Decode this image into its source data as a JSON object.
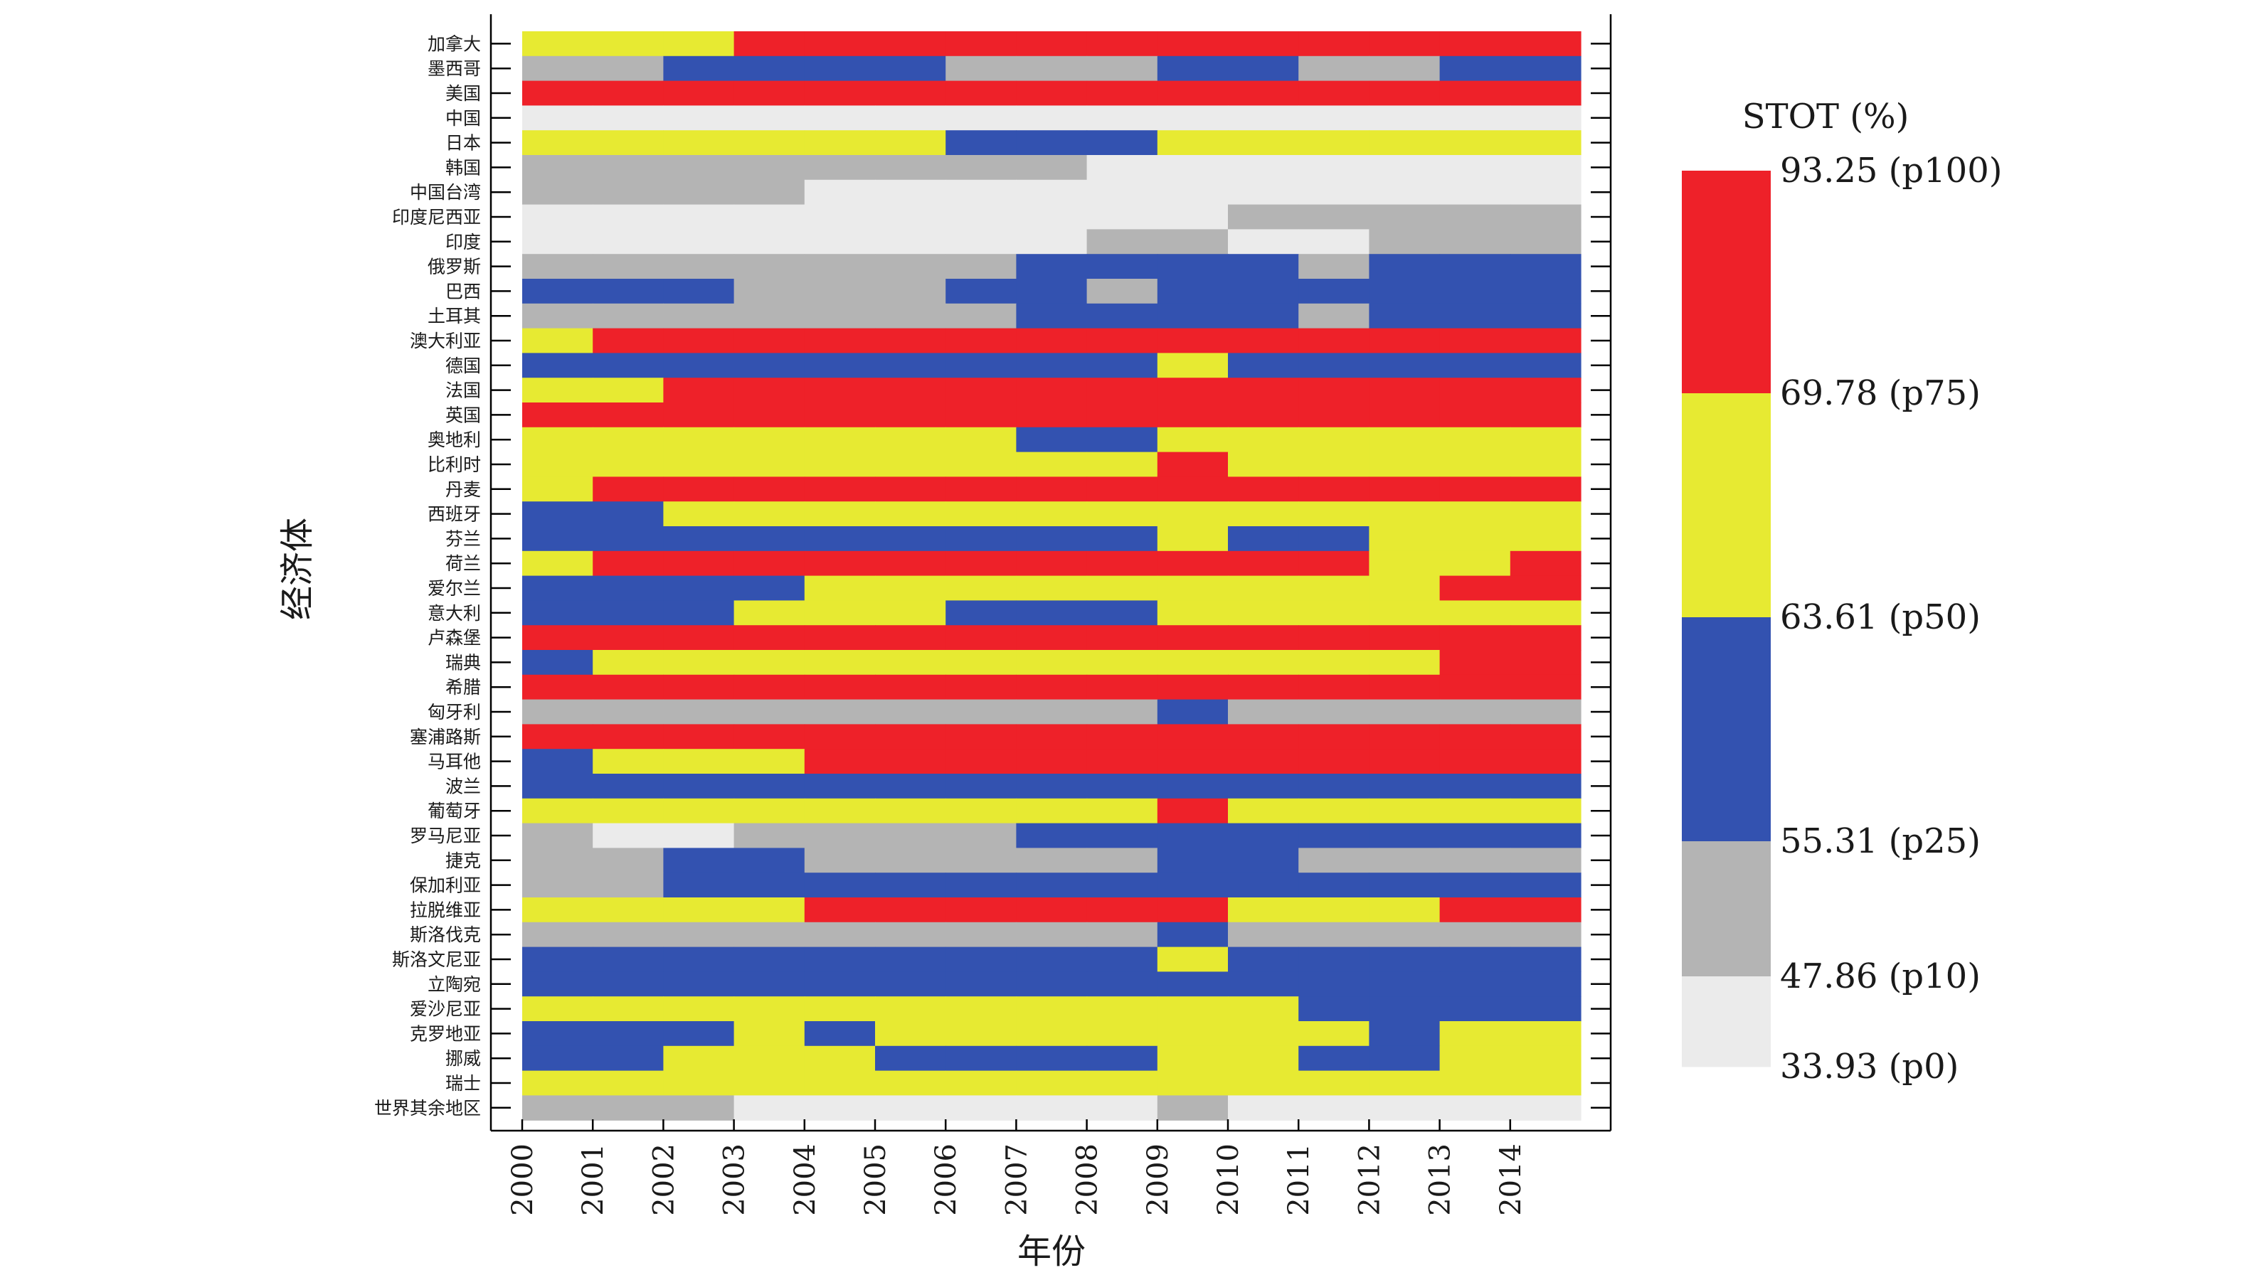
{
  "chart_data": {
    "type": "heatmap",
    "xlabel": "年份",
    "ylabel": "经济体",
    "years": [
      "2000",
      "2001",
      "2002",
      "2003",
      "2004",
      "2005",
      "2006",
      "2007",
      "2008",
      "2009",
      "2010",
      "2011",
      "2012",
      "2013",
      "2014"
    ],
    "class_codes": {
      "0": "p0–p10",
      "1": "p10–p25",
      "2": "p25–p50",
      "3": "p50–p75",
      "4": "p75–p100"
    },
    "class_colors": [
      "#ebebeb",
      "#b4b4b4",
      "#3352b0",
      "#e7ea32",
      "#ee2129"
    ],
    "economies": [
      {
        "name": "加拿大",
        "classes": [
          3,
          3,
          3,
          4,
          4,
          4,
          4,
          4,
          4,
          4,
          4,
          4,
          4,
          4,
          4
        ]
      },
      {
        "name": "墨西哥",
        "classes": [
          1,
          1,
          2,
          2,
          2,
          2,
          1,
          1,
          1,
          2,
          2,
          1,
          1,
          2,
          2
        ]
      },
      {
        "name": "美国",
        "classes": [
          4,
          4,
          4,
          4,
          4,
          4,
          4,
          4,
          4,
          4,
          4,
          4,
          4,
          4,
          4
        ]
      },
      {
        "name": "中国",
        "classes": [
          0,
          0,
          0,
          0,
          0,
          0,
          0,
          0,
          0,
          0,
          0,
          0,
          0,
          0,
          0
        ]
      },
      {
        "name": "日本",
        "classes": [
          3,
          3,
          3,
          3,
          3,
          3,
          2,
          2,
          2,
          3,
          3,
          3,
          3,
          3,
          3
        ]
      },
      {
        "name": "韩国",
        "classes": [
          1,
          1,
          1,
          1,
          1,
          1,
          1,
          1,
          0,
          0,
          0,
          0,
          0,
          0,
          0
        ]
      },
      {
        "name": "中国台湾",
        "classes": [
          1,
          1,
          1,
          1,
          0,
          0,
          0,
          0,
          0,
          0,
          0,
          0,
          0,
          0,
          0
        ]
      },
      {
        "name": "印度尼西亚",
        "classes": [
          0,
          0,
          0,
          0,
          0,
          0,
          0,
          0,
          0,
          0,
          1,
          1,
          1,
          1,
          1
        ]
      },
      {
        "name": "印度",
        "classes": [
          0,
          0,
          0,
          0,
          0,
          0,
          0,
          0,
          1,
          1,
          0,
          0,
          1,
          1,
          1
        ]
      },
      {
        "name": "俄罗斯",
        "classes": [
          1,
          1,
          1,
          1,
          1,
          1,
          1,
          2,
          2,
          2,
          2,
          1,
          2,
          2,
          2
        ]
      },
      {
        "name": "巴西",
        "classes": [
          2,
          2,
          2,
          1,
          1,
          1,
          2,
          2,
          1,
          2,
          2,
          2,
          2,
          2,
          2
        ]
      },
      {
        "name": "土耳其",
        "classes": [
          1,
          1,
          1,
          1,
          1,
          1,
          1,
          2,
          2,
          2,
          2,
          1,
          2,
          2,
          2
        ]
      },
      {
        "name": "澳大利亚",
        "classes": [
          3,
          4,
          4,
          4,
          4,
          4,
          4,
          4,
          4,
          4,
          4,
          4,
          4,
          4,
          4
        ]
      },
      {
        "name": "德国",
        "classes": [
          2,
          2,
          2,
          2,
          2,
          2,
          2,
          2,
          2,
          3,
          2,
          2,
          2,
          2,
          2
        ]
      },
      {
        "name": "法国",
        "classes": [
          3,
          3,
          4,
          4,
          4,
          4,
          4,
          4,
          4,
          4,
          4,
          4,
          4,
          4,
          4
        ]
      },
      {
        "name": "英国",
        "classes": [
          4,
          4,
          4,
          4,
          4,
          4,
          4,
          4,
          4,
          4,
          4,
          4,
          4,
          4,
          4
        ]
      },
      {
        "name": "奥地利",
        "classes": [
          3,
          3,
          3,
          3,
          3,
          3,
          3,
          2,
          2,
          3,
          3,
          3,
          3,
          3,
          3
        ]
      },
      {
        "name": "比利时",
        "classes": [
          3,
          3,
          3,
          3,
          3,
          3,
          3,
          3,
          3,
          4,
          3,
          3,
          3,
          3,
          3
        ]
      },
      {
        "name": "丹麦",
        "classes": [
          3,
          4,
          4,
          4,
          4,
          4,
          4,
          4,
          4,
          4,
          4,
          4,
          4,
          4,
          4
        ]
      },
      {
        "name": "西班牙",
        "classes": [
          2,
          2,
          3,
          3,
          3,
          3,
          3,
          3,
          3,
          3,
          3,
          3,
          3,
          3,
          3
        ]
      },
      {
        "name": "芬兰",
        "classes": [
          2,
          2,
          2,
          2,
          2,
          2,
          2,
          2,
          2,
          3,
          2,
          2,
          3,
          3,
          3
        ]
      },
      {
        "name": "荷兰",
        "classes": [
          3,
          4,
          4,
          4,
          4,
          4,
          4,
          4,
          4,
          4,
          4,
          4,
          3,
          3,
          4
        ]
      },
      {
        "name": "爱尔兰",
        "classes": [
          2,
          2,
          2,
          2,
          3,
          3,
          3,
          3,
          3,
          3,
          3,
          3,
          3,
          4,
          4
        ]
      },
      {
        "name": "意大利",
        "classes": [
          2,
          2,
          2,
          3,
          3,
          3,
          2,
          2,
          2,
          3,
          3,
          3,
          3,
          3,
          3
        ]
      },
      {
        "name": "卢森堡",
        "classes": [
          4,
          4,
          4,
          4,
          4,
          4,
          4,
          4,
          4,
          4,
          4,
          4,
          4,
          4,
          4
        ]
      },
      {
        "name": "瑞典",
        "classes": [
          2,
          3,
          3,
          3,
          3,
          3,
          3,
          3,
          3,
          3,
          3,
          3,
          3,
          4,
          4
        ]
      },
      {
        "name": "希腊",
        "classes": [
          4,
          4,
          4,
          4,
          4,
          4,
          4,
          4,
          4,
          4,
          4,
          4,
          4,
          4,
          4
        ]
      },
      {
        "name": "匈牙利",
        "classes": [
          1,
          1,
          1,
          1,
          1,
          1,
          1,
          1,
          1,
          2,
          1,
          1,
          1,
          1,
          1
        ]
      },
      {
        "name": "塞浦路斯",
        "classes": [
          4,
          4,
          4,
          4,
          4,
          4,
          4,
          4,
          4,
          4,
          4,
          4,
          4,
          4,
          4
        ]
      },
      {
        "name": "马耳他",
        "classes": [
          2,
          3,
          3,
          3,
          4,
          4,
          4,
          4,
          4,
          4,
          4,
          4,
          4,
          4,
          4
        ]
      },
      {
        "name": "波兰",
        "classes": [
          2,
          2,
          2,
          2,
          2,
          2,
          2,
          2,
          2,
          2,
          2,
          2,
          2,
          2,
          2
        ]
      },
      {
        "name": "葡萄牙",
        "classes": [
          3,
          3,
          3,
          3,
          3,
          3,
          3,
          3,
          3,
          4,
          3,
          3,
          3,
          3,
          3
        ]
      },
      {
        "name": "罗马尼亚",
        "classes": [
          1,
          0,
          0,
          1,
          1,
          1,
          1,
          2,
          2,
          2,
          2,
          2,
          2,
          2,
          2
        ]
      },
      {
        "name": "捷克",
        "classes": [
          1,
          1,
          2,
          2,
          1,
          1,
          1,
          1,
          1,
          2,
          2,
          1,
          1,
          1,
          1
        ]
      },
      {
        "name": "保加利亚",
        "classes": [
          1,
          1,
          2,
          2,
          2,
          2,
          2,
          2,
          2,
          2,
          2,
          2,
          2,
          2,
          2
        ]
      },
      {
        "name": "拉脱维亚",
        "classes": [
          3,
          3,
          3,
          3,
          4,
          4,
          4,
          4,
          4,
          4,
          3,
          3,
          3,
          4,
          4
        ]
      },
      {
        "name": "斯洛伐克",
        "classes": [
          1,
          1,
          1,
          1,
          1,
          1,
          1,
          1,
          1,
          2,
          1,
          1,
          1,
          1,
          1
        ]
      },
      {
        "name": "斯洛文尼亚",
        "classes": [
          2,
          2,
          2,
          2,
          2,
          2,
          2,
          2,
          2,
          3,
          2,
          2,
          2,
          2,
          2
        ]
      },
      {
        "name": "立陶宛",
        "classes": [
          2,
          2,
          2,
          2,
          2,
          2,
          2,
          2,
          2,
          2,
          2,
          2,
          2,
          2,
          2
        ]
      },
      {
        "name": "爱沙尼亚",
        "classes": [
          3,
          3,
          3,
          3,
          3,
          3,
          3,
          3,
          3,
          3,
          3,
          2,
          2,
          2,
          2
        ]
      },
      {
        "name": "克罗地亚",
        "classes": [
          2,
          2,
          2,
          3,
          2,
          3,
          3,
          3,
          3,
          3,
          3,
          3,
          2,
          3,
          3
        ]
      },
      {
        "name": "挪威",
        "classes": [
          2,
          2,
          3,
          3,
          3,
          2,
          2,
          2,
          2,
          3,
          3,
          2,
          2,
          3,
          3
        ]
      },
      {
        "name": "瑞士",
        "classes": [
          3,
          3,
          3,
          3,
          3,
          3,
          3,
          3,
          3,
          3,
          3,
          3,
          3,
          3,
          3
        ]
      },
      {
        "name": "世界其余地区",
        "classes": [
          1,
          1,
          1,
          0,
          0,
          0,
          0,
          0,
          0,
          1,
          0,
          0,
          0,
          0,
          0
        ]
      }
    ],
    "legend": {
      "title": "STOT (%)",
      "bands": [
        "#ee2129",
        "#e7ea32",
        "#3352b0",
        "#b4b4b4",
        "#ebebeb"
      ],
      "ticks": [
        "93.25 (p100)",
        "69.78 (p75)",
        "63.61 (p50)",
        "55.31 (p25)",
        "47.86 (p10)",
        "33.93 (p0)"
      ]
    }
  }
}
